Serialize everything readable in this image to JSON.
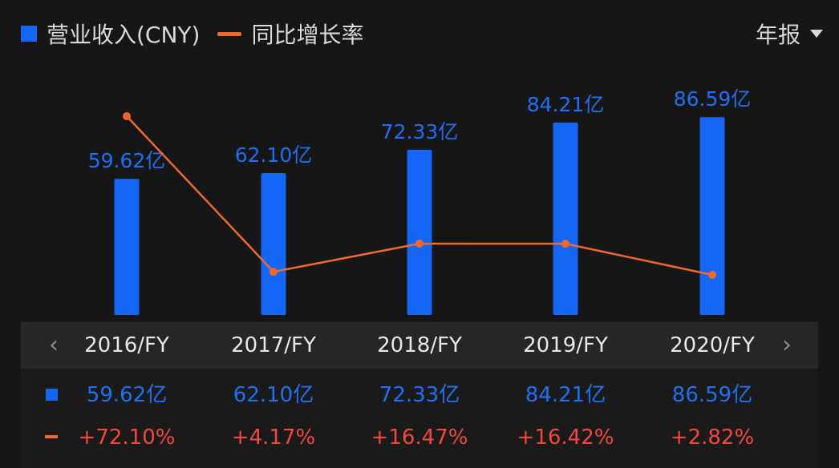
{
  "legend": {
    "revenue_label": "营业收入(CNY)",
    "growth_label": "同比增长率"
  },
  "period_selector": {
    "label": "年报"
  },
  "colors": {
    "background": "#161616",
    "bar": "#1566f5",
    "bar_label": "#1f6ff5",
    "line": "#f0682a",
    "growth_text": "#f0483c"
  },
  "chart_data": {
    "type": "bar",
    "categories": [
      "2016/FY",
      "2017/FY",
      "2018/FY",
      "2019/FY",
      "2020/FY"
    ],
    "series": [
      {
        "name": "营业收入(CNY)",
        "type": "bar",
        "values": [
          59.62,
          62.1,
          72.33,
          84.21,
          86.59
        ],
        "labels": [
          "59.62亿",
          "62.10亿",
          "72.33亿",
          "84.21亿",
          "86.59亿"
        ]
      },
      {
        "name": "同比增长率",
        "type": "line",
        "values": [
          72.1,
          4.17,
          16.47,
          16.42,
          2.82
        ],
        "labels": [
          "+72.10%",
          "+4.17%",
          "+16.47%",
          "+16.42%",
          "+2.82%"
        ]
      }
    ],
    "legend_position": "top-left",
    "grid": false
  },
  "table": {
    "revenue_row": [
      "59.62亿",
      "62.10亿",
      "72.33亿",
      "84.21亿",
      "86.59亿"
    ],
    "growth_row": [
      "+72.10%",
      "+4.17%",
      "+16.47%",
      "+16.42%",
      "+2.82%"
    ]
  },
  "nav": {
    "prev_icon": "chevron-left-icon",
    "next_icon": "chevron-right-icon"
  }
}
